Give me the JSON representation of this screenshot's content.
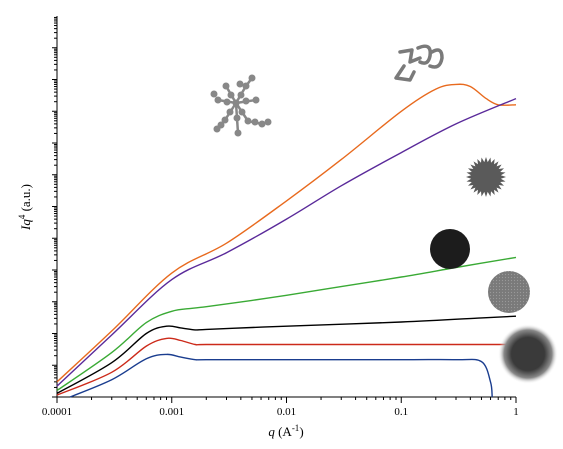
{
  "chart_data": {
    "type": "line",
    "x_scale": "log",
    "y_scale": "log",
    "xlim": [
      0.0001,
      1
    ],
    "ylim": [
      1,
      1000000000000
    ],
    "xlabel_var": "q",
    "xlabel_units": " (A",
    "xlabel_exp": "-1",
    "xlabel_close": ")",
    "ylabel_var": "Iq",
    "ylabel_exp": "4",
    "ylabel_units": " (a.u.)",
    "x_ticks": [
      "0.0001",
      "0.001",
      "0.01",
      "0.1",
      "1"
    ],
    "x_tick_values": [
      0.0001,
      0.001,
      0.01,
      0.1,
      1
    ],
    "grid": false,
    "series": [
      {
        "color": "#e86a1e",
        "x": [
          0.0001,
          0.0003,
          0.001,
          0.003,
          0.01,
          0.03,
          0.1,
          0.2,
          0.3,
          0.4,
          0.55,
          0.7,
          1.0
        ],
        "y": [
          3.0,
          120,
          8000,
          70000,
          1500000,
          30000000,
          1000000000,
          5000000000,
          7000000000,
          6000000000,
          2500000000,
          1600000000,
          1600000000
        ]
      },
      {
        "color": "#5a2a9a",
        "x": [
          0.0001,
          0.0003,
          0.001,
          0.003,
          0.01,
          0.03,
          0.1,
          0.3,
          1.0
        ],
        "y": [
          2.2,
          90,
          5000,
          35000,
          400000,
          4500000,
          50000000,
          400000000,
          2500000000
        ]
      },
      {
        "color": "#3aaa35",
        "x": [
          0.0001,
          0.0003,
          0.0006,
          0.001,
          0.0015,
          0.002,
          0.005,
          0.01,
          0.03,
          0.1,
          0.3,
          1.0
        ],
        "y": [
          1.6,
          25,
          220,
          500,
          620,
          700,
          1100,
          1600,
          3000,
          6000,
          12000,
          25000
        ]
      },
      {
        "color": "#000000",
        "x": [
          0.0001,
          0.0003,
          0.0006,
          0.0009,
          0.0012,
          0.0016,
          0.002,
          0.005,
          0.01,
          0.1,
          0.5,
          1.0
        ],
        "y": [
          1.3,
          12,
          100,
          170,
          150,
          130,
          135,
          155,
          170,
          230,
          310,
          350
        ]
      },
      {
        "color": "#cc2a1a",
        "x": [
          0.0001,
          0.0003,
          0.0006,
          0.0009,
          0.0012,
          0.0016,
          0.002,
          0.01,
          0.1,
          0.5,
          1.0
        ],
        "y": [
          1.15,
          6,
          40,
          70,
          60,
          45,
          45,
          45,
          45,
          45,
          45
        ]
      },
      {
        "color": "#1a3d8f",
        "x": [
          0.00013,
          0.0003,
          0.0006,
          0.0009,
          0.0012,
          0.0016,
          0.002,
          0.01,
          0.1,
          0.3,
          0.5,
          0.6,
          0.62
        ],
        "y": [
          1.0,
          3.5,
          16,
          22,
          18,
          15,
          15,
          15,
          15,
          15,
          13,
          3.0,
          1.0
        ]
      }
    ]
  },
  "illustrations": [
    {
      "shape": "branched-polymer",
      "icon": "branched-polymer-icon"
    },
    {
      "shape": "coil-polymer",
      "icon": "coil-polymer-icon"
    },
    {
      "shape": "spiky-sphere",
      "color": "#5a5a5a",
      "icon": "spiky-sphere-icon"
    },
    {
      "shape": "dark-sphere",
      "color": "#1c1c1c",
      "icon": "dark-sphere-icon"
    },
    {
      "shape": "gray-sphere",
      "color": "#7a7a7a",
      "icon": "gray-sphere-icon"
    },
    {
      "shape": "fuzzy-sphere",
      "color": "#444444",
      "icon": "fuzzy-sphere-icon"
    }
  ]
}
